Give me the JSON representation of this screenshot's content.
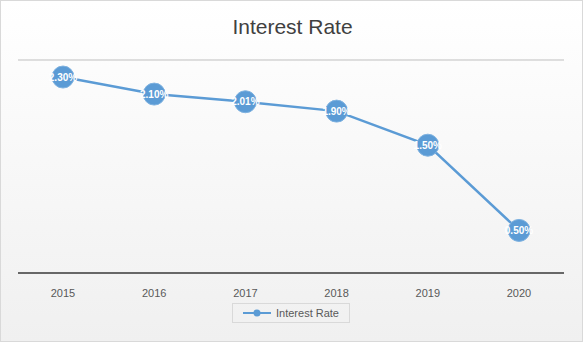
{
  "chart_data": {
    "type": "line",
    "title": "Interest Rate",
    "categories": [
      "2015",
      "2016",
      "2017",
      "2018",
      "2019",
      "2020"
    ],
    "series": [
      {
        "name": "Interest Rate",
        "color": "#5b9bd5",
        "values": [
          2.3,
          2.1,
          2.01,
          1.9,
          1.5,
          0.5
        ],
        "value_labels": [
          "2.30%",
          "2.10%",
          "2.01%",
          "1.90%",
          "1.50%",
          "0.50%"
        ],
        "marker": "circle"
      }
    ],
    "ylim": [
      0,
      2.5
    ],
    "yticks": [
      0,
      0.5,
      1,
      1.5,
      2,
      2.5
    ],
    "grid": true,
    "tick_labels": "x",
    "data_labels": true,
    "legend": "bottom"
  }
}
